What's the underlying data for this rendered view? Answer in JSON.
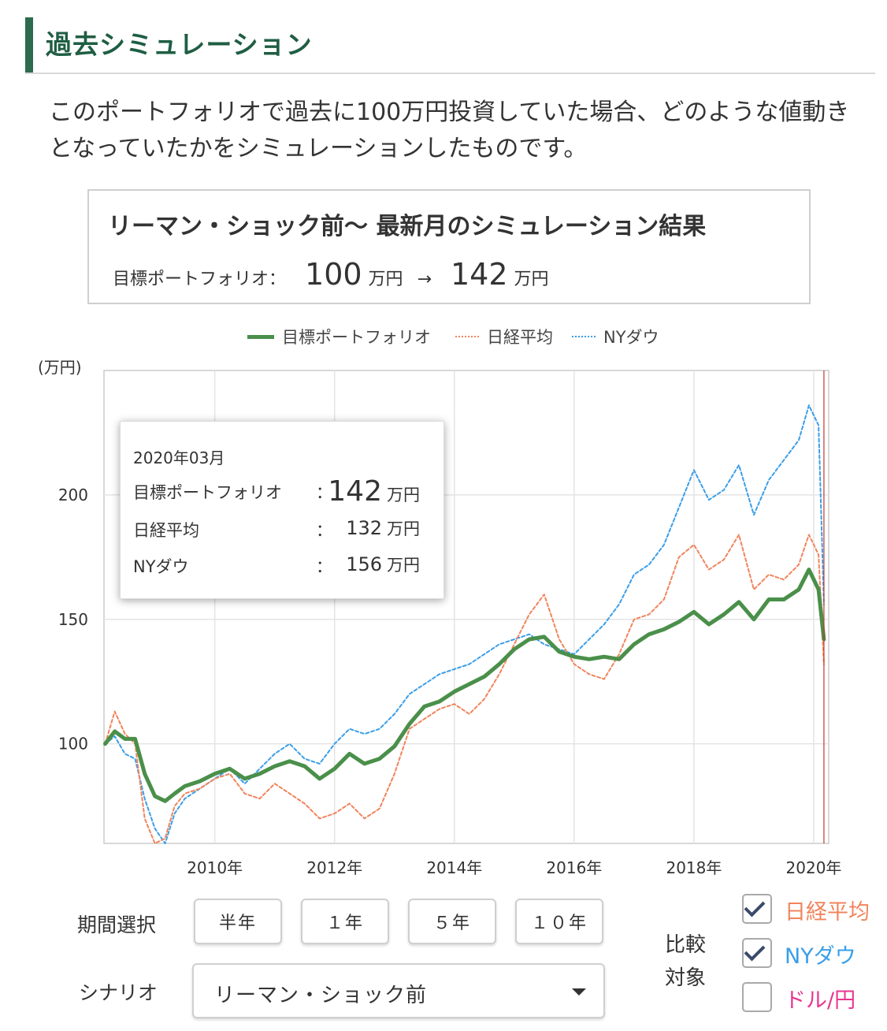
{
  "section": {
    "title": "過去シミュレーション"
  },
  "intro": {
    "text": "このポートフォリオで過去に100万円投資していた場合、どのような値動きとなっていたかをシミュレーションしたものです。"
  },
  "result": {
    "title": "リーマン・ショック前〜 最新月のシミュレーション結果",
    "label": "目標ポートフォリオ：",
    "start_value": "100",
    "arrow": "→",
    "end_value": "142",
    "unit": "万円"
  },
  "legend": {
    "items": [
      {
        "label": "目標ポートフォリオ",
        "color": "#4a8f4a",
        "style": "solid"
      },
      {
        "label": "日経平均",
        "color": "#f0845c",
        "style": "dotted"
      },
      {
        "label": "NYダウ",
        "color": "#3a9ee8",
        "style": "dotted"
      }
    ]
  },
  "tooltip": {
    "date": "2020年03月",
    "colon": "：",
    "rows": [
      {
        "name": "目標ポートフォリオ",
        "value": "142",
        "unit": "万円"
      },
      {
        "name": "日経平均",
        "value": "132",
        "unit": "万円"
      },
      {
        "name": "NYダウ",
        "value": "156",
        "unit": "万円"
      }
    ]
  },
  "chart_data": {
    "type": "line",
    "ylabel": "(万円)",
    "ylim": [
      60,
      250
    ],
    "yticks": [
      100,
      150,
      200
    ],
    "xlim": [
      2008.15,
      2020.25
    ],
    "xticks": [
      {
        "x": 2010,
        "label": "2010年"
      },
      {
        "x": 2012,
        "label": "2012年"
      },
      {
        "x": 2014,
        "label": "2014年"
      },
      {
        "x": 2016,
        "label": "2016年"
      },
      {
        "x": 2018,
        "label": "2018年"
      },
      {
        "x": 2020,
        "label": "2020年"
      }
    ],
    "grid": true,
    "legend_position": "top-center",
    "series": [
      {
        "name": "目標ポートフォリオ",
        "color": "#4a8f4a",
        "points": [
          [
            2008.17,
            100
          ],
          [
            2008.33,
            105
          ],
          [
            2008.5,
            102
          ],
          [
            2008.67,
            102
          ],
          [
            2008.83,
            88
          ],
          [
            2009.0,
            79
          ],
          [
            2009.17,
            77
          ],
          [
            2009.33,
            80
          ],
          [
            2009.5,
            83
          ],
          [
            2009.75,
            85
          ],
          [
            2010.0,
            88
          ],
          [
            2010.25,
            90
          ],
          [
            2010.5,
            86
          ],
          [
            2010.75,
            88
          ],
          [
            2011.0,
            91
          ],
          [
            2011.25,
            93
          ],
          [
            2011.5,
            91
          ],
          [
            2011.75,
            86
          ],
          [
            2012.0,
            90
          ],
          [
            2012.25,
            96
          ],
          [
            2012.5,
            92
          ],
          [
            2012.75,
            94
          ],
          [
            2013.0,
            99
          ],
          [
            2013.25,
            108
          ],
          [
            2013.5,
            115
          ],
          [
            2013.75,
            117
          ],
          [
            2014.0,
            121
          ],
          [
            2014.25,
            124
          ],
          [
            2014.5,
            127
          ],
          [
            2014.75,
            132
          ],
          [
            2015.0,
            138
          ],
          [
            2015.25,
            142
          ],
          [
            2015.5,
            143
          ],
          [
            2015.75,
            137
          ],
          [
            2016.0,
            135
          ],
          [
            2016.25,
            134
          ],
          [
            2016.5,
            135
          ],
          [
            2016.75,
            134
          ],
          [
            2017.0,
            140
          ],
          [
            2017.25,
            144
          ],
          [
            2017.5,
            146
          ],
          [
            2017.75,
            149
          ],
          [
            2018.0,
            153
          ],
          [
            2018.25,
            148
          ],
          [
            2018.5,
            152
          ],
          [
            2018.75,
            157
          ],
          [
            2019.0,
            150
          ],
          [
            2019.25,
            158
          ],
          [
            2019.5,
            158
          ],
          [
            2019.75,
            162
          ],
          [
            2019.92,
            170
          ],
          [
            2020.08,
            162
          ],
          [
            2020.17,
            142
          ]
        ]
      },
      {
        "name": "日経平均",
        "color": "#f0845c",
        "points": [
          [
            2008.17,
            100
          ],
          [
            2008.33,
            113
          ],
          [
            2008.5,
            104
          ],
          [
            2008.67,
            100
          ],
          [
            2008.83,
            70
          ],
          [
            2009.0,
            60
          ],
          [
            2009.17,
            62
          ],
          [
            2009.33,
            75
          ],
          [
            2009.5,
            80
          ],
          [
            2009.75,
            82
          ],
          [
            2010.0,
            86
          ],
          [
            2010.25,
            88
          ],
          [
            2010.5,
            80
          ],
          [
            2010.75,
            78
          ],
          [
            2011.0,
            84
          ],
          [
            2011.25,
            80
          ],
          [
            2011.5,
            76
          ],
          [
            2011.75,
            70
          ],
          [
            2012.0,
            72
          ],
          [
            2012.25,
            76
          ],
          [
            2012.5,
            70
          ],
          [
            2012.75,
            74
          ],
          [
            2013.0,
            88
          ],
          [
            2013.25,
            106
          ],
          [
            2013.5,
            110
          ],
          [
            2013.75,
            114
          ],
          [
            2014.0,
            116
          ],
          [
            2014.25,
            112
          ],
          [
            2014.5,
            118
          ],
          [
            2014.75,
            128
          ],
          [
            2015.0,
            140
          ],
          [
            2015.25,
            152
          ],
          [
            2015.5,
            160
          ],
          [
            2015.75,
            142
          ],
          [
            2016.0,
            132
          ],
          [
            2016.25,
            128
          ],
          [
            2016.5,
            126
          ],
          [
            2016.75,
            136
          ],
          [
            2017.0,
            150
          ],
          [
            2017.25,
            152
          ],
          [
            2017.5,
            158
          ],
          [
            2017.75,
            175
          ],
          [
            2018.0,
            180
          ],
          [
            2018.25,
            170
          ],
          [
            2018.5,
            174
          ],
          [
            2018.75,
            184
          ],
          [
            2019.0,
            162
          ],
          [
            2019.25,
            168
          ],
          [
            2019.5,
            166
          ],
          [
            2019.75,
            172
          ],
          [
            2019.92,
            184
          ],
          [
            2020.08,
            176
          ],
          [
            2020.17,
            132
          ]
        ]
      },
      {
        "name": "NYダウ",
        "color": "#3a9ee8",
        "points": [
          [
            2008.17,
            100
          ],
          [
            2008.33,
            103
          ],
          [
            2008.5,
            96
          ],
          [
            2008.67,
            94
          ],
          [
            2008.83,
            78
          ],
          [
            2009.0,
            66
          ],
          [
            2009.17,
            60
          ],
          [
            2009.33,
            72
          ],
          [
            2009.5,
            78
          ],
          [
            2009.75,
            82
          ],
          [
            2010.0,
            86
          ],
          [
            2010.25,
            90
          ],
          [
            2010.5,
            84
          ],
          [
            2010.75,
            90
          ],
          [
            2011.0,
            96
          ],
          [
            2011.25,
            100
          ],
          [
            2011.5,
            94
          ],
          [
            2011.75,
            92
          ],
          [
            2012.0,
            100
          ],
          [
            2012.25,
            106
          ],
          [
            2012.5,
            104
          ],
          [
            2012.75,
            106
          ],
          [
            2013.0,
            112
          ],
          [
            2013.25,
            120
          ],
          [
            2013.5,
            124
          ],
          [
            2013.75,
            128
          ],
          [
            2014.0,
            130
          ],
          [
            2014.25,
            132
          ],
          [
            2014.5,
            136
          ],
          [
            2014.75,
            140
          ],
          [
            2015.0,
            142
          ],
          [
            2015.25,
            144
          ],
          [
            2015.5,
            140
          ],
          [
            2015.75,
            138
          ],
          [
            2016.0,
            136
          ],
          [
            2016.25,
            142
          ],
          [
            2016.5,
            148
          ],
          [
            2016.75,
            156
          ],
          [
            2017.0,
            168
          ],
          [
            2017.25,
            172
          ],
          [
            2017.5,
            180
          ],
          [
            2017.75,
            195
          ],
          [
            2018.0,
            210
          ],
          [
            2018.25,
            198
          ],
          [
            2018.5,
            202
          ],
          [
            2018.75,
            212
          ],
          [
            2019.0,
            192
          ],
          [
            2019.25,
            206
          ],
          [
            2019.5,
            214
          ],
          [
            2019.75,
            222
          ],
          [
            2019.92,
            236
          ],
          [
            2020.08,
            228
          ],
          [
            2020.17,
            156
          ]
        ]
      }
    ]
  },
  "controls": {
    "period_label": "期間選択",
    "period_options": [
      "半年",
      "１年",
      "５年",
      "１０年"
    ],
    "scenario_label": "シナリオ",
    "scenario_value": "リーマン・ショック前",
    "compare_label_line1": "比較",
    "compare_label_line2": "対象",
    "compare_items": [
      {
        "label": "日経平均",
        "checked": true,
        "color": "#f0845c"
      },
      {
        "label": "NYダウ",
        "checked": true,
        "color": "#3a9ee8"
      },
      {
        "label": "ドル/円",
        "checked": false,
        "color": "#e8368f"
      }
    ]
  }
}
